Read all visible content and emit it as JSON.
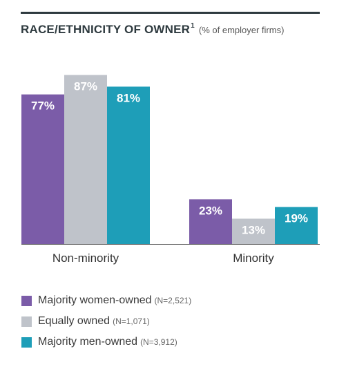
{
  "header": {
    "title": "RACE/ETHNICITY OF OWNER",
    "footnote_marker": "1",
    "subtitle": "(% of employer firms)"
  },
  "colors": {
    "rule": "#2e3a3f",
    "title": "#2e3a3f",
    "axis": "#444444",
    "women": "#7b5ca8",
    "equal": "#bfc3ca",
    "men": "#1e9eb8",
    "bar_label": "#ffffff"
  },
  "chart_data": {
    "type": "bar",
    "categories": [
      "Non-minority",
      "Minority"
    ],
    "series": [
      {
        "name": "Majority women-owned",
        "n": "(N=2,521)",
        "color": "#7b5ca8",
        "values": [
          77,
          23
        ],
        "labels": [
          "77%",
          "23%"
        ]
      },
      {
        "name": "Equally owned",
        "n": "(N=1,071)",
        "color": "#bfc3ca",
        "values": [
          87,
          13
        ],
        "labels": [
          "87%",
          "13%"
        ]
      },
      {
        "name": "Majority men-owned",
        "n": "(N=3,912)",
        "color": "#1e9eb8",
        "values": [
          81,
          19
        ],
        "labels": [
          "81%",
          "19%"
        ]
      }
    ],
    "ylim": [
      0,
      100
    ],
    "grid": false,
    "legend": "bottom-left",
    "xlabel": "",
    "ylabel": ""
  }
}
